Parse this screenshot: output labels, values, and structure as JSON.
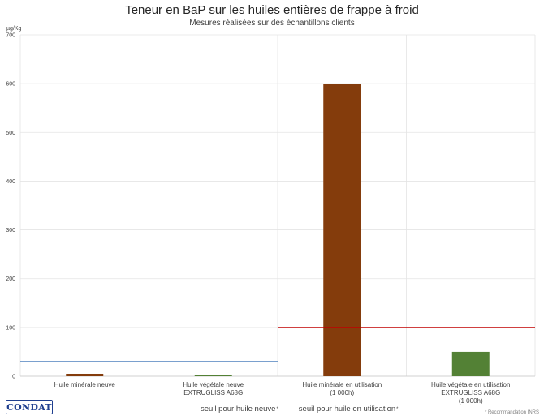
{
  "title_parts": {
    "normal": "Teneur en BaP sur les ",
    "bold": "huiles entières de frappe à froid"
  },
  "subtitle": "Mesures réalisées sur des échantillons clients",
  "unit": "µg/Kg",
  "footnote": "* Recommandation INRS",
  "logo_text": "CONDAT",
  "chart_data": {
    "type": "bar",
    "title": "Teneur en BaP sur les huiles entières de frappe à froid",
    "subtitle": "Mesures réalisées sur des échantillons clients",
    "ylabel": "µg/Kg",
    "ylim": [
      0,
      700
    ],
    "yticks": [
      0,
      100,
      200,
      300,
      400,
      500,
      600,
      700
    ],
    "grid": true,
    "categories": [
      [
        "Huile minérale neuve"
      ],
      [
        "Huile végétale neuve",
        "EXTRUGLISS A68G"
      ],
      [
        "Huile minérale en utilisation",
        "(1 000h)"
      ],
      [
        "Huile végétale en utilisation",
        "EXTRUGLISS A68G",
        "(1 000h)"
      ]
    ],
    "values": [
      5,
      3,
      600,
      50
    ],
    "bar_colors": [
      "#843c0c",
      "#538135",
      "#843c0c",
      "#538135"
    ],
    "thresholds": [
      {
        "name": "seuil pour huile neuve",
        "mark": "*",
        "value": 30,
        "categories": [
          0,
          1
        ],
        "color": "#4f81bd"
      },
      {
        "name": "seuil pour huile en utilisation",
        "mark": "*",
        "value": 100,
        "categories": [
          2,
          3
        ],
        "color": "#c00000"
      }
    ],
    "legend_position": "bottom"
  }
}
